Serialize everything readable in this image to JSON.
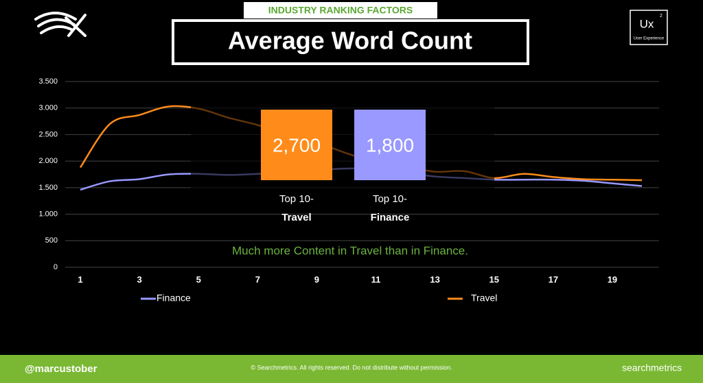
{
  "header": {
    "tab": "INDUSTRY RANKING FACTORS",
    "title": "Average Word Count"
  },
  "logo": {
    "text": "Ux",
    "sup": "2",
    "sub": "User Experience"
  },
  "chart_data": {
    "type": "line",
    "x": [
      1,
      2,
      3,
      4,
      5,
      6,
      7,
      8,
      9,
      10,
      11,
      12,
      13,
      14,
      15,
      16,
      17,
      18,
      19,
      20
    ],
    "xlim": [
      1,
      20
    ],
    "xticks": [
      1,
      3,
      5,
      7,
      9,
      11,
      13,
      15,
      17,
      19
    ],
    "ylim": [
      0,
      3500
    ],
    "yticks": [
      0,
      500,
      {
        "value": 1000,
        "label": "1.000"
      },
      {
        "value": 1500,
        "label": "1.500"
      },
      {
        "value": 2000,
        "label": "2.000"
      },
      {
        "value": 2500,
        "label": "2.500"
      },
      {
        "value": 3000,
        "label": "3.000"
      },
      {
        "value": 3500,
        "label": "3.500"
      }
    ],
    "grid": true,
    "legend": "bottom",
    "series": [
      {
        "name": "Finance",
        "color": "#9999ff",
        "values": [
          1460,
          1620,
          1660,
          1750,
          1760,
          1740,
          1760,
          1800,
          1830,
          1860,
          1850,
          1780,
          1710,
          1680,
          1650,
          1650,
          1650,
          1630,
          1580,
          1530
        ]
      },
      {
        "name": "Travel",
        "color": "#ff8c1a",
        "values": [
          1880,
          2700,
          2870,
          3030,
          2990,
          2820,
          2680,
          2500,
          2350,
          2150,
          1980,
          1900,
          1800,
          1810,
          1680,
          1760,
          1700,
          1660,
          1650,
          1640
        ]
      }
    ],
    "callouts": [
      {
        "value": 2700,
        "value_label": "2,700",
        "line1": "Top 10-",
        "line2": "Travel",
        "color": "#ff8c1a"
      },
      {
        "value": 1800,
        "value_label": "1,800",
        "line1": "Top 10-",
        "line2": "Finance",
        "color": "#9999ff"
      }
    ],
    "annotation": "Much more Content in Travel than in Finance."
  },
  "footer": {
    "handle": "@marcustober",
    "copyright": "© Searchmetrics. All rights reserved. Do not distribute without permission.",
    "brand": "searchmetrics"
  }
}
